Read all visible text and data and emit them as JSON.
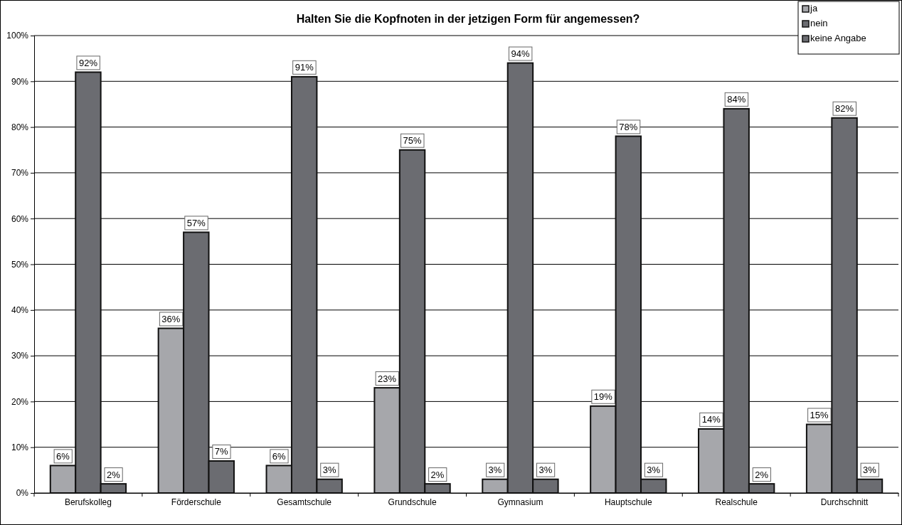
{
  "chart_data": {
    "type": "bar",
    "title": "Halten Sie die Kopfnoten in der jetzigen Form für angemessen?",
    "categories": [
      "Berufskolleg",
      "Förderschule",
      "Gesamtschule",
      "Grundschule",
      "Gymnasium",
      "Hauptschule",
      "Realschule",
      "Durchschnitt"
    ],
    "series": [
      {
        "name": "ja",
        "color": "#a6a7ab",
        "values": [
          6,
          36,
          6,
          23,
          3,
          19,
          14,
          15
        ],
        "value_labels": [
          "6%",
          "36%",
          "6%",
          "23%",
          "3%",
          "19%",
          "14%",
          "15%"
        ]
      },
      {
        "name": "nein",
        "color": "#6b6c71",
        "values": [
          92,
          57,
          91,
          75,
          94,
          78,
          84,
          82
        ],
        "value_labels": [
          "92%",
          "57%",
          "91%",
          "75%",
          "94%",
          "78%",
          "84%",
          "82%"
        ]
      },
      {
        "name": "keine Angabe",
        "color": "#6b6c71",
        "values": [
          2,
          7,
          3,
          2,
          3,
          3,
          2,
          3
        ],
        "value_labels": [
          "2%",
          "7%",
          "3%",
          "2%",
          "3%",
          "3%",
          "2%",
          "3%"
        ]
      }
    ],
    "ylim": [
      0,
      100
    ],
    "yticks": [
      {
        "value": 0,
        "label": "0%"
      },
      {
        "value": 10,
        "label": "10%"
      },
      {
        "value": 20,
        "label": "20%"
      },
      {
        "value": 30,
        "label": "30%"
      },
      {
        "value": 40,
        "label": "40%"
      },
      {
        "value": 50,
        "label": "50%"
      },
      {
        "value": 60,
        "label": "60%"
      },
      {
        "value": 70,
        "label": "70%"
      },
      {
        "value": 80,
        "label": "80%"
      },
      {
        "value": 90,
        "label": "90%"
      },
      {
        "value": 100,
        "label": "100%"
      }
    ],
    "grid": "y",
    "legend": "top right"
  }
}
